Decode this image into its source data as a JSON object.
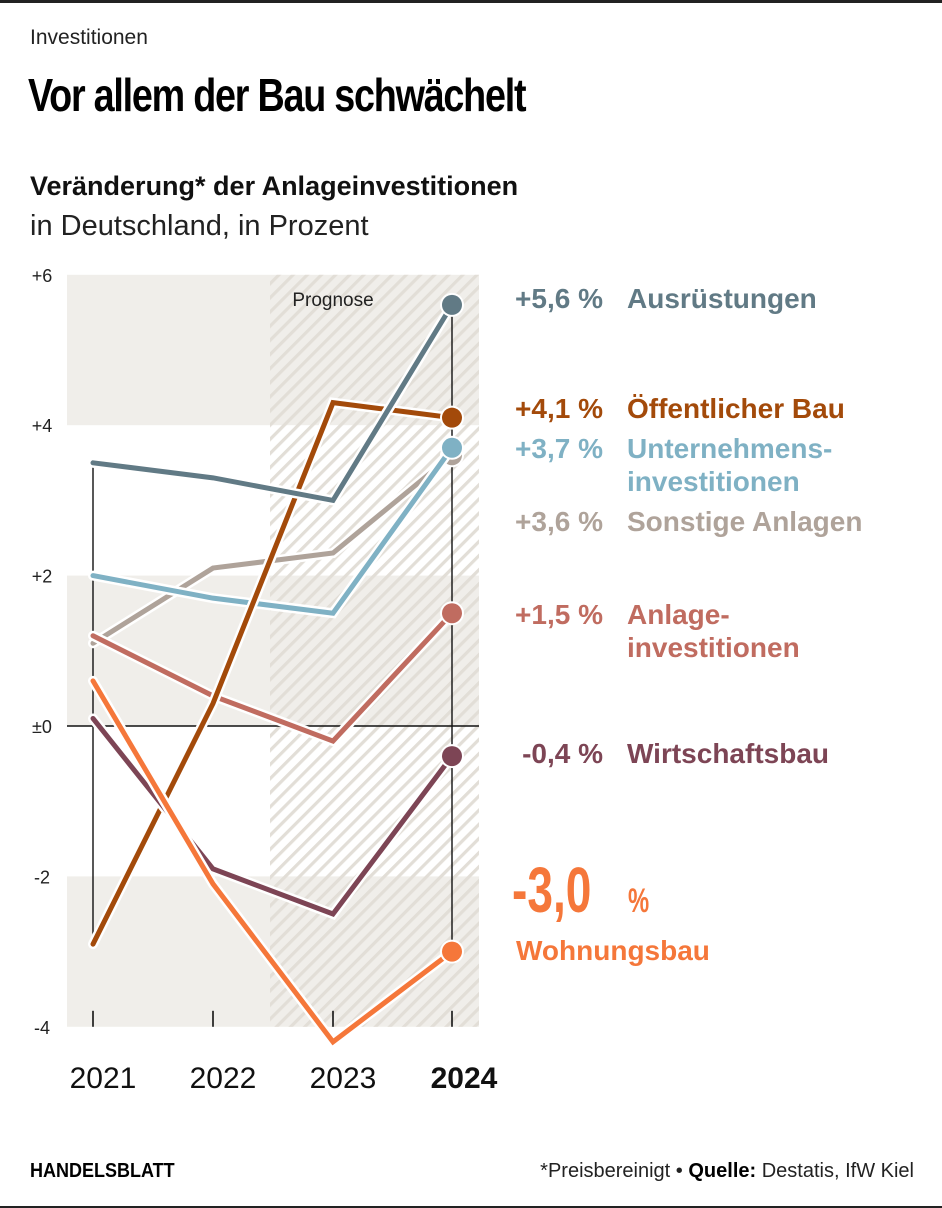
{
  "header": {
    "kicker": "Investitionen",
    "headline": "Vor allem der Bau schwächelt",
    "subtitle": "Veränderung* der Anlageinvestitionen",
    "subtitle2": "in Deutschland, in Prozent"
  },
  "footer": {
    "brand": "HANDELSBLATT",
    "note_prefix": "*Preisbereinigt",
    "separator": "•",
    "source_label": "Quelle:",
    "source_value": "Destatis, IfW Kiel"
  },
  "chart_data": {
    "type": "line",
    "title": "Veränderung* der Anlageinvestitionen",
    "subtitle": "in Deutschland, in Prozent",
    "xlabel": "",
    "ylabel": "",
    "x": [
      "2021",
      "2022",
      "2023",
      "2024"
    ],
    "x_bold": [
      "2024"
    ],
    "ylim": [
      -4,
      6
    ],
    "yticks": [
      6,
      4,
      2,
      0,
      -2,
      -4
    ],
    "ytick_labels": [
      "+6",
      "+4",
      "+2",
      "±0",
      "-2",
      "-4"
    ],
    "forecast_annotation": "Prognose",
    "forecast_from": "2023",
    "band_shading": "alternating 2-unit bands",
    "legend": "direct labels at right end of lines",
    "series": [
      {
        "name": "Ausrüstungen",
        "label_value": "+5,6 %",
        "color": "#617a85",
        "values": [
          3.5,
          3.3,
          3.0,
          5.6
        ],
        "label_lines": [
          "Ausrüstungen"
        ]
      },
      {
        "name": "Öffentlicher Bau",
        "label_value": "+4,1 %",
        "color": "#a34a0a",
        "values": [
          -2.9,
          0.3,
          4.3,
          4.1
        ],
        "label_lines": [
          "Öffentlicher Bau"
        ]
      },
      {
        "name": "Unternehmensinvestitionen",
        "label_value": "+3,7 %",
        "color": "#7fb1c4",
        "values": [
          2.0,
          1.7,
          1.5,
          3.7
        ],
        "label_lines": [
          "Unternehmens-",
          "investitionen"
        ]
      },
      {
        "name": "Sonstige Anlagen",
        "label_value": "+3,6 %",
        "color": "#afa39a",
        "values": [
          1.1,
          2.1,
          2.3,
          3.6
        ],
        "label_lines": [
          "Sonstige Anlagen"
        ]
      },
      {
        "name": "Anlageinvestitionen",
        "label_value": "+1,5 %",
        "color": "#c06c60",
        "values": [
          1.2,
          0.4,
          -0.2,
          1.5
        ],
        "label_lines": [
          "Anlage-",
          "investitionen"
        ]
      },
      {
        "name": "Wirtschaftsbau",
        "label_value": "-0,4 %",
        "color": "#7d4555",
        "values": [
          0.1,
          -1.9,
          -2.5,
          -0.4
        ],
        "label_lines": [
          "Wirtschaftsbau"
        ]
      },
      {
        "name": "Wohnungsbau",
        "label_value": "-3,0",
        "label_unit": "%",
        "color": "#f5773a",
        "values": [
          0.6,
          -2.1,
          -4.2,
          -3.0
        ],
        "label_lines": [
          "Wohnungsbau"
        ],
        "highlight": true
      }
    ]
  }
}
